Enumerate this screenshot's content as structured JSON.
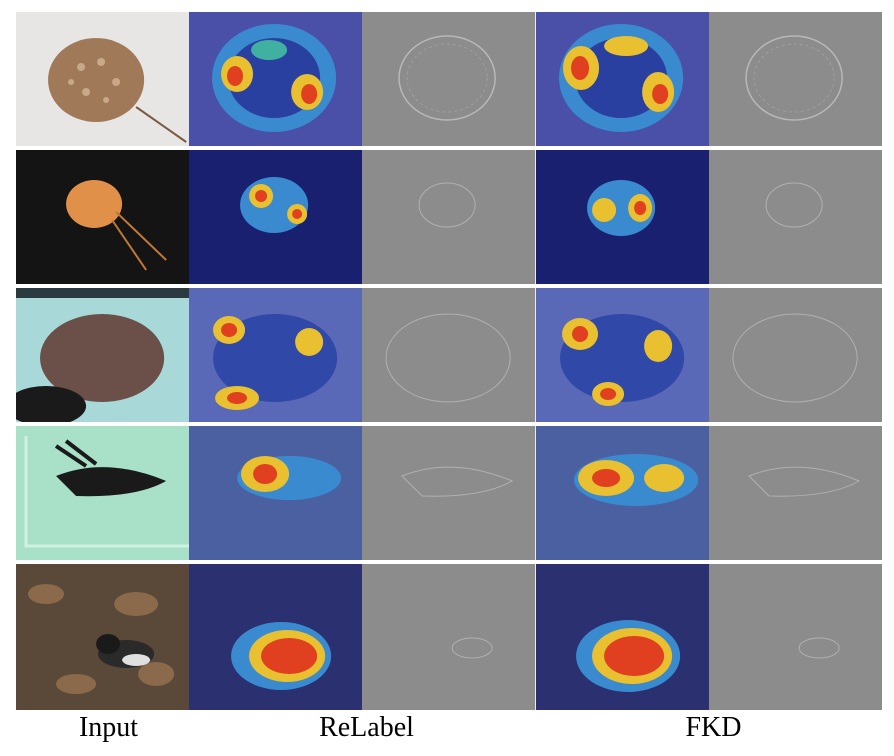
{
  "columns": [
    "Input",
    "ReLabel",
    "FKD"
  ],
  "rows": [
    {
      "subject": "stingray-white-background"
    },
    {
      "subject": "stingray-dark-water"
    },
    {
      "subject": "stingray-tank"
    },
    {
      "subject": "black-fish-tank"
    },
    {
      "subject": "bird-leaves"
    }
  ]
}
